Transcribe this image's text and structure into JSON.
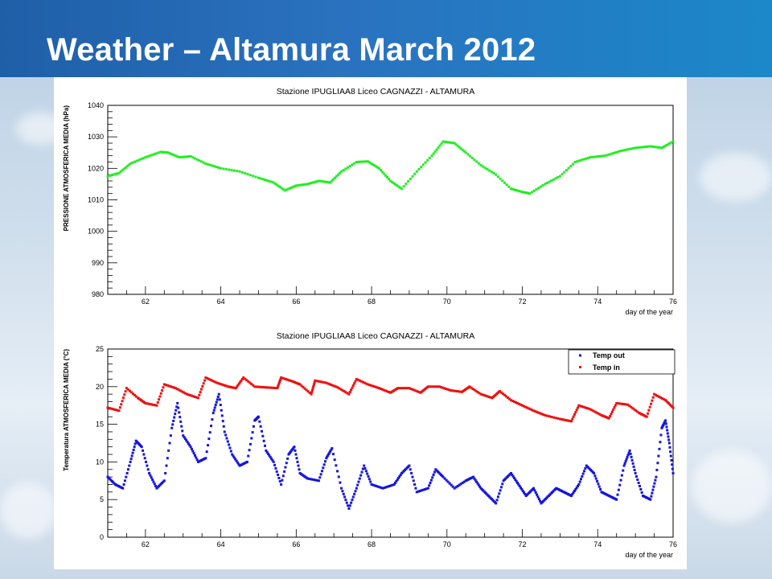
{
  "slide": {
    "title": "Weather – Altamura March 2012"
  },
  "chart_data": [
    {
      "type": "scatter",
      "title": "Stazione IPUGLIAA8 Liceo CAGNAZZI - ALTAMURA",
      "xlabel": "day of the year",
      "ylabel": "PRESSIONE ATMOSFERICA MEDIA (hPa)",
      "xlim": [
        61,
        76
      ],
      "ylim": [
        980,
        1040
      ],
      "xticks": [
        62,
        64,
        66,
        68,
        70,
        72,
        74,
        76
      ],
      "yticks": [
        980,
        990,
        1000,
        1010,
        1020,
        1030,
        1040
      ],
      "grid": false,
      "series": [
        {
          "color": "#22ee22",
          "points": [
            [
              61.0,
              1017.5
            ],
            [
              61.3,
              1018.5
            ],
            [
              61.6,
              1021.5
            ],
            [
              62.0,
              1023.5
            ],
            [
              62.4,
              1025.2
            ],
            [
              62.6,
              1025.0
            ],
            [
              62.9,
              1023.5
            ],
            [
              63.2,
              1023.8
            ],
            [
              63.6,
              1021.5
            ],
            [
              64.0,
              1020.0
            ],
            [
              64.5,
              1019.0
            ],
            [
              65.0,
              1017.0
            ],
            [
              65.4,
              1015.5
            ],
            [
              65.7,
              1013.0
            ],
            [
              66.0,
              1014.5
            ],
            [
              66.3,
              1015.0
            ],
            [
              66.6,
              1016.0
            ],
            [
              66.9,
              1015.5
            ],
            [
              67.2,
              1019.0
            ],
            [
              67.6,
              1022.0
            ],
            [
              67.9,
              1022.2
            ],
            [
              68.2,
              1020.0
            ],
            [
              68.5,
              1016.0
            ],
            [
              68.8,
              1013.5
            ],
            [
              69.2,
              1019.0
            ],
            [
              69.6,
              1024.0
            ],
            [
              69.9,
              1028.5
            ],
            [
              70.2,
              1028.0
            ],
            [
              70.5,
              1025.0
            ],
            [
              70.9,
              1021.0
            ],
            [
              71.3,
              1018.0
            ],
            [
              71.7,
              1013.5
            ],
            [
              72.0,
              1012.5
            ],
            [
              72.2,
              1012.0
            ],
            [
              72.6,
              1015.0
            ],
            [
              73.0,
              1017.5
            ],
            [
              73.4,
              1022.0
            ],
            [
              73.8,
              1023.5
            ],
            [
              74.2,
              1024.0
            ],
            [
              74.6,
              1025.5
            ],
            [
              75.0,
              1026.5
            ],
            [
              75.4,
              1027.0
            ],
            [
              75.7,
              1026.5
            ],
            [
              76.0,
              1028.5
            ]
          ]
        }
      ]
    },
    {
      "type": "scatter",
      "title": "Stazione IPUGLIAA8 Liceo CAGNAZZI - ALTAMURA",
      "xlabel": "day of the year",
      "ylabel": "Temperatura ATMOSFERICA MEDIA (°C)",
      "xlim": [
        61,
        76
      ],
      "ylim": [
        0,
        25
      ],
      "xticks": [
        62,
        64,
        66,
        68,
        70,
        72,
        74,
        76
      ],
      "yticks": [
        0,
        5,
        10,
        15,
        20,
        25
      ],
      "grid": false,
      "legend": "top-right",
      "series": [
        {
          "name": "Temp out",
          "color": "#1515dd",
          "points": [
            [
              61.0,
              8.0
            ],
            [
              61.2,
              7.0
            ],
            [
              61.4,
              6.5
            ],
            [
              61.6,
              10.0
            ],
            [
              61.75,
              12.8
            ],
            [
              61.9,
              12.0
            ],
            [
              62.1,
              8.5
            ],
            [
              62.3,
              6.5
            ],
            [
              62.5,
              7.5
            ],
            [
              62.7,
              14.5
            ],
            [
              62.85,
              17.8
            ],
            [
              63.0,
              13.5
            ],
            [
              63.2,
              12.0
            ],
            [
              63.4,
              10.0
            ],
            [
              63.6,
              10.5
            ],
            [
              63.8,
              16.5
            ],
            [
              63.95,
              19.0
            ],
            [
              64.1,
              14.0
            ],
            [
              64.3,
              11.0
            ],
            [
              64.5,
              9.5
            ],
            [
              64.7,
              10.0
            ],
            [
              64.9,
              15.5
            ],
            [
              65.0,
              16.0
            ],
            [
              65.2,
              11.5
            ],
            [
              65.4,
              10.0
            ],
            [
              65.6,
              7.0
            ],
            [
              65.8,
              11.0
            ],
            [
              65.95,
              12.0
            ],
            [
              66.1,
              8.5
            ],
            [
              66.3,
              7.8
            ],
            [
              66.6,
              7.5
            ],
            [
              66.8,
              10.5
            ],
            [
              66.95,
              11.8
            ],
            [
              67.2,
              6.5
            ],
            [
              67.4,
              3.8
            ],
            [
              67.6,
              6.5
            ],
            [
              67.8,
              9.5
            ],
            [
              68.0,
              7.0
            ],
            [
              68.3,
              6.5
            ],
            [
              68.6,
              7.0
            ],
            [
              68.8,
              8.5
            ],
            [
              69.0,
              9.5
            ],
            [
              69.2,
              6.0
            ],
            [
              69.5,
              6.5
            ],
            [
              69.7,
              9.0
            ],
            [
              69.9,
              8.0
            ],
            [
              70.2,
              6.5
            ],
            [
              70.5,
              7.5
            ],
            [
              70.7,
              8.0
            ],
            [
              70.9,
              6.5
            ],
            [
              71.1,
              5.5
            ],
            [
              71.3,
              4.5
            ],
            [
              71.5,
              7.5
            ],
            [
              71.7,
              8.5
            ],
            [
              71.9,
              7.0
            ],
            [
              72.1,
              5.5
            ],
            [
              72.3,
              6.5
            ],
            [
              72.5,
              4.5
            ],
            [
              72.7,
              5.5
            ],
            [
              72.9,
              6.5
            ],
            [
              73.1,
              6.0
            ],
            [
              73.3,
              5.5
            ],
            [
              73.5,
              7.0
            ],
            [
              73.7,
              9.5
            ],
            [
              73.9,
              8.5
            ],
            [
              74.1,
              6.0
            ],
            [
              74.3,
              5.5
            ],
            [
              74.5,
              5.0
            ],
            [
              74.7,
              9.5
            ],
            [
              74.85,
              11.5
            ],
            [
              75.0,
              8.5
            ],
            [
              75.2,
              5.5
            ],
            [
              75.4,
              5.0
            ],
            [
              75.55,
              8.0
            ],
            [
              75.7,
              14.5
            ],
            [
              75.8,
              15.5
            ],
            [
              75.9,
              12.5
            ],
            [
              76.0,
              8.5
            ]
          ]
        },
        {
          "name": "Temp in",
          "color": "#ee1111",
          "points": [
            [
              61.0,
              17.2
            ],
            [
              61.3,
              16.8
            ],
            [
              61.5,
              19.8
            ],
            [
              61.8,
              18.5
            ],
            [
              62.0,
              17.8
            ],
            [
              62.3,
              17.5
            ],
            [
              62.5,
              20.3
            ],
            [
              62.8,
              19.8
            ],
            [
              63.1,
              19.0
            ],
            [
              63.4,
              18.5
            ],
            [
              63.6,
              21.2
            ],
            [
              63.9,
              20.5
            ],
            [
              64.2,
              20.0
            ],
            [
              64.4,
              19.8
            ],
            [
              64.6,
              21.2
            ],
            [
              64.9,
              20.0
            ],
            [
              65.2,
              19.9
            ],
            [
              65.5,
              19.8
            ],
            [
              65.6,
              21.2
            ],
            [
              65.9,
              20.7
            ],
            [
              66.1,
              20.3
            ],
            [
              66.4,
              19.0
            ],
            [
              66.5,
              20.8
            ],
            [
              66.8,
              20.5
            ],
            [
              67.1,
              19.9
            ],
            [
              67.4,
              19.0
            ],
            [
              67.6,
              21.0
            ],
            [
              67.9,
              20.3
            ],
            [
              68.2,
              19.8
            ],
            [
              68.5,
              19.2
            ],
            [
              68.7,
              19.8
            ],
            [
              69.0,
              19.8
            ],
            [
              69.3,
              19.2
            ],
            [
              69.5,
              20.0
            ],
            [
              69.8,
              20.0
            ],
            [
              70.1,
              19.5
            ],
            [
              70.4,
              19.3
            ],
            [
              70.6,
              20.0
            ],
            [
              70.9,
              19.0
            ],
            [
              71.2,
              18.5
            ],
            [
              71.4,
              19.4
            ],
            [
              71.7,
              18.2
            ],
            [
              72.0,
              17.5
            ],
            [
              72.3,
              16.8
            ],
            [
              72.6,
              16.2
            ],
            [
              73.0,
              15.7
            ],
            [
              73.3,
              15.4
            ],
            [
              73.5,
              17.5
            ],
            [
              73.8,
              17.0
            ],
            [
              74.1,
              16.2
            ],
            [
              74.3,
              15.8
            ],
            [
              74.5,
              17.8
            ],
            [
              74.8,
              17.6
            ],
            [
              75.1,
              16.5
            ],
            [
              75.3,
              16.0
            ],
            [
              75.5,
              19.0
            ],
            [
              75.8,
              18.2
            ],
            [
              76.0,
              17.2
            ]
          ]
        }
      ]
    }
  ]
}
